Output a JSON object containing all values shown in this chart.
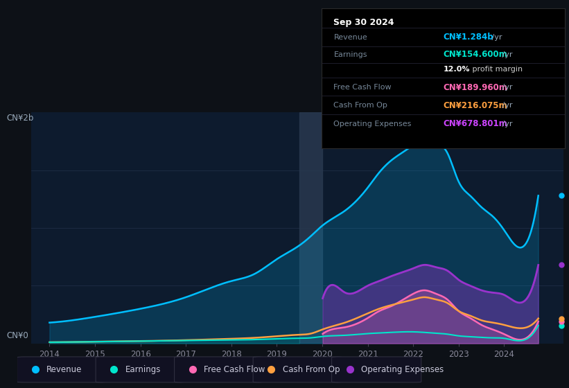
{
  "background_color": "#0d1117",
  "chart_bg": "#0d1b2e",
  "ylabel_top": "CN¥2b",
  "ylabel_bottom": "CN¥0",
  "info_box": {
    "title": "Sep 30 2024",
    "rows": [
      {
        "label": "Revenue",
        "value": "CN¥1.284b /yr",
        "color": "#00bfff",
        "value_normal": " /yr",
        "value_bold": "CN¥1.284b"
      },
      {
        "label": "Earnings",
        "value": "CN¥154.600m /yr",
        "color": "#00e5cc",
        "value_normal": " /yr",
        "value_bold": "CN¥154.600m"
      },
      {
        "label": "",
        "value": "12.0% profit margin",
        "color": "#ffffff",
        "bold_prefix": "12.0%",
        "rest": " profit margin"
      },
      {
        "label": "Free Cash Flow",
        "value": "CN¥189.960m /yr",
        "color": "#ff69b4",
        "value_normal": " /yr",
        "value_bold": "CN¥189.960m"
      },
      {
        "label": "Cash From Op",
        "value": "CN¥216.075m /yr",
        "color": "#ffa040",
        "value_normal": " /yr",
        "value_bold": "CN¥216.075m"
      },
      {
        "label": "Operating Expenses",
        "value": "CN¥678.801m /yr",
        "color": "#cc44ff",
        "value_normal": " /yr",
        "value_bold": "CN¥678.801m"
      }
    ]
  },
  "legend_items": [
    {
      "label": "Revenue",
      "color": "#00bfff"
    },
    {
      "label": "Earnings",
      "color": "#00e5cc"
    },
    {
      "label": "Free Cash Flow",
      "color": "#ff69b4"
    },
    {
      "label": "Cash From Op",
      "color": "#ffa040"
    },
    {
      "label": "Operating Expenses",
      "color": "#9933cc"
    }
  ],
  "revenue_color": "#00bfff",
  "earnings_color": "#00e5cc",
  "fcf_color": "#ff69b4",
  "cfop_color": "#ffa040",
  "opex_color": "#9933cc",
  "grid_color": "#1e2d45",
  "ylim": [
    0,
    2.0
  ],
  "xlim": [
    2013.6,
    2025.3
  ]
}
